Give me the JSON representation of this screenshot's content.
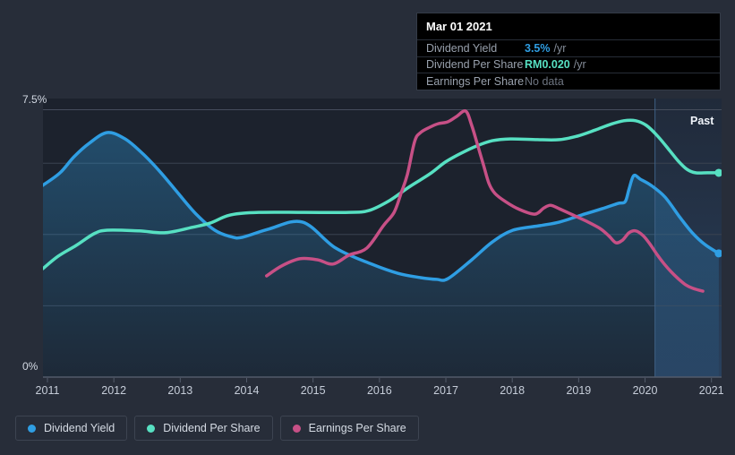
{
  "past_label": "Past",
  "colors": {
    "page_bg": "#272d39",
    "plot_bg": "#1c222d",
    "grid_line": "#3a4250",
    "grid_line_top": "#454d5c",
    "axis_line": "#525b6a",
    "past_divider": "#3f6186",
    "past_band_top": "rgba(70,115,175,0.10)",
    "past_band_bottom": "rgba(70,135,205,0.30)",
    "area_top": "rgba(47,158,227,0.34)",
    "area_bottom": "rgba(47,158,227,0.06)",
    "blue": "#2f9ee3",
    "teal": "#57e0c2",
    "pink": "#c75086"
  },
  "tooltip": {
    "date": "Mar 01 2021",
    "rows": [
      {
        "label": "Dividend Yield",
        "value": "3.5%",
        "suffix": "/yr",
        "color": "#2f9ee3",
        "muted": false
      },
      {
        "label": "Dividend Per Share",
        "value": "RM0.020",
        "suffix": "/yr",
        "color": "#57e0c2",
        "muted": false
      },
      {
        "label": "Earnings Per Share",
        "value": "No data",
        "suffix": "",
        "color": "#6d7480",
        "muted": true
      }
    ]
  },
  "legend": {
    "items": [
      {
        "label": "Dividend Yield",
        "color": "#2f9ee3"
      },
      {
        "label": "Dividend Per Share",
        "color": "#57e0c2"
      },
      {
        "label": "Earnings Per Share",
        "color": "#c75086"
      }
    ]
  },
  "chart_data": {
    "type": "line",
    "title": "",
    "note": "Dividend history chart. Y axis is Dividend Yield percent (0% - 7.5%). Dividend Per Share (RM0.020/yr at Mar 01 2021) and Earnings Per Share (No data at Mar 01 2021) are overlaid on hidden scales; their values below are in y-axis units as drawn. Shaded band at right marks the past year.",
    "x_axis": {
      "ticks": [
        2011,
        2012,
        2013,
        2014,
        2015,
        2016,
        2017,
        2018,
        2019,
        2020,
        2021
      ]
    },
    "y_axis": {
      "min": 0,
      "max": 7.5,
      "label_top": "7.5%",
      "label_bottom": "0%",
      "gridlines": [
        2,
        4,
        6
      ]
    },
    "past_start_x": 2020.15,
    "series": [
      {
        "name": "Dividend Yield",
        "color": "#2f9ee3",
        "end_dot": true,
        "area": true,
        "points": [
          [
            2010.93,
            5.38
          ],
          [
            2011.19,
            5.73
          ],
          [
            2011.4,
            6.18
          ],
          [
            2011.63,
            6.56
          ],
          [
            2011.9,
            6.86
          ],
          [
            2012.17,
            6.68
          ],
          [
            2012.44,
            6.26
          ],
          [
            2012.71,
            5.73
          ],
          [
            2012.98,
            5.13
          ],
          [
            2013.25,
            4.55
          ],
          [
            2013.52,
            4.12
          ],
          [
            2013.76,
            3.94
          ],
          [
            2013.93,
            3.92
          ],
          [
            2014.33,
            4.15
          ],
          [
            2014.84,
            4.35
          ],
          [
            2015.34,
            3.62
          ],
          [
            2015.88,
            3.17
          ],
          [
            2016.28,
            2.91
          ],
          [
            2016.62,
            2.79
          ],
          [
            2016.86,
            2.74
          ],
          [
            2017.03,
            2.76
          ],
          [
            2017.39,
            3.29
          ],
          [
            2017.7,
            3.79
          ],
          [
            2018.01,
            4.12
          ],
          [
            2018.42,
            4.25
          ],
          [
            2018.71,
            4.35
          ],
          [
            2019.05,
            4.55
          ],
          [
            2019.35,
            4.72
          ],
          [
            2019.59,
            4.87
          ],
          [
            2019.7,
            4.92
          ],
          [
            2019.76,
            5.28
          ],
          [
            2019.83,
            5.65
          ],
          [
            2019.93,
            5.55
          ],
          [
            2020.09,
            5.38
          ],
          [
            2020.3,
            5.05
          ],
          [
            2020.53,
            4.47
          ],
          [
            2020.71,
            4.05
          ],
          [
            2020.9,
            3.72
          ],
          [
            2021.11,
            3.47
          ]
        ]
      },
      {
        "name": "Dividend Per Share",
        "color": "#57e0c2",
        "end_dot": true,
        "area": false,
        "points": [
          [
            2010.93,
            3.04
          ],
          [
            2011.16,
            3.39
          ],
          [
            2011.43,
            3.69
          ],
          [
            2011.7,
            4.02
          ],
          [
            2011.9,
            4.12
          ],
          [
            2012.38,
            4.1
          ],
          [
            2012.78,
            4.05
          ],
          [
            2013.18,
            4.2
          ],
          [
            2013.45,
            4.32
          ],
          [
            2013.76,
            4.55
          ],
          [
            2014.2,
            4.62
          ],
          [
            2014.87,
            4.62
          ],
          [
            2015.54,
            4.62
          ],
          [
            2015.84,
            4.67
          ],
          [
            2016.15,
            4.95
          ],
          [
            2016.46,
            5.35
          ],
          [
            2016.76,
            5.7
          ],
          [
            2016.99,
            6.03
          ],
          [
            2017.23,
            6.28
          ],
          [
            2017.46,
            6.48
          ],
          [
            2017.7,
            6.63
          ],
          [
            2017.97,
            6.68
          ],
          [
            2018.38,
            6.66
          ],
          [
            2018.71,
            6.66
          ],
          [
            2018.98,
            6.76
          ],
          [
            2019.25,
            6.93
          ],
          [
            2019.48,
            7.09
          ],
          [
            2019.68,
            7.19
          ],
          [
            2019.86,
            7.19
          ],
          [
            2020.02,
            7.06
          ],
          [
            2020.19,
            6.76
          ],
          [
            2020.36,
            6.38
          ],
          [
            2020.5,
            6.06
          ],
          [
            2020.63,
            5.83
          ],
          [
            2020.76,
            5.73
          ],
          [
            2020.94,
            5.73
          ],
          [
            2021.11,
            5.73
          ]
        ]
      },
      {
        "name": "Earnings Per Share",
        "color": "#c75086",
        "end_dot": false,
        "area": false,
        "points": [
          [
            2014.3,
            2.84
          ],
          [
            2014.53,
            3.12
          ],
          [
            2014.8,
            3.32
          ],
          [
            2015.07,
            3.29
          ],
          [
            2015.3,
            3.17
          ],
          [
            2015.54,
            3.42
          ],
          [
            2015.81,
            3.62
          ],
          [
            2016.06,
            4.25
          ],
          [
            2016.22,
            4.62
          ],
          [
            2016.33,
            5.18
          ],
          [
            2016.42,
            5.68
          ],
          [
            2016.53,
            6.61
          ],
          [
            2016.62,
            6.86
          ],
          [
            2016.76,
            7.01
          ],
          [
            2016.89,
            7.11
          ],
          [
            2017.03,
            7.16
          ],
          [
            2017.16,
            7.31
          ],
          [
            2017.3,
            7.46
          ],
          [
            2017.39,
            7.06
          ],
          [
            2017.47,
            6.56
          ],
          [
            2017.57,
            5.93
          ],
          [
            2017.65,
            5.43
          ],
          [
            2017.74,
            5.15
          ],
          [
            2017.9,
            4.92
          ],
          [
            2018.11,
            4.7
          ],
          [
            2018.34,
            4.57
          ],
          [
            2018.48,
            4.75
          ],
          [
            2018.58,
            4.82
          ],
          [
            2018.71,
            4.72
          ],
          [
            2018.91,
            4.55
          ],
          [
            2019.12,
            4.37
          ],
          [
            2019.32,
            4.17
          ],
          [
            2019.45,
            3.97
          ],
          [
            2019.56,
            3.77
          ],
          [
            2019.66,
            3.84
          ],
          [
            2019.76,
            4.05
          ],
          [
            2019.86,
            4.1
          ],
          [
            2019.97,
            3.97
          ],
          [
            2020.07,
            3.74
          ],
          [
            2020.18,
            3.44
          ],
          [
            2020.29,
            3.17
          ],
          [
            2020.4,
            2.94
          ],
          [
            2020.5,
            2.76
          ],
          [
            2020.61,
            2.59
          ],
          [
            2020.72,
            2.49
          ],
          [
            2020.87,
            2.41
          ]
        ]
      }
    ]
  }
}
